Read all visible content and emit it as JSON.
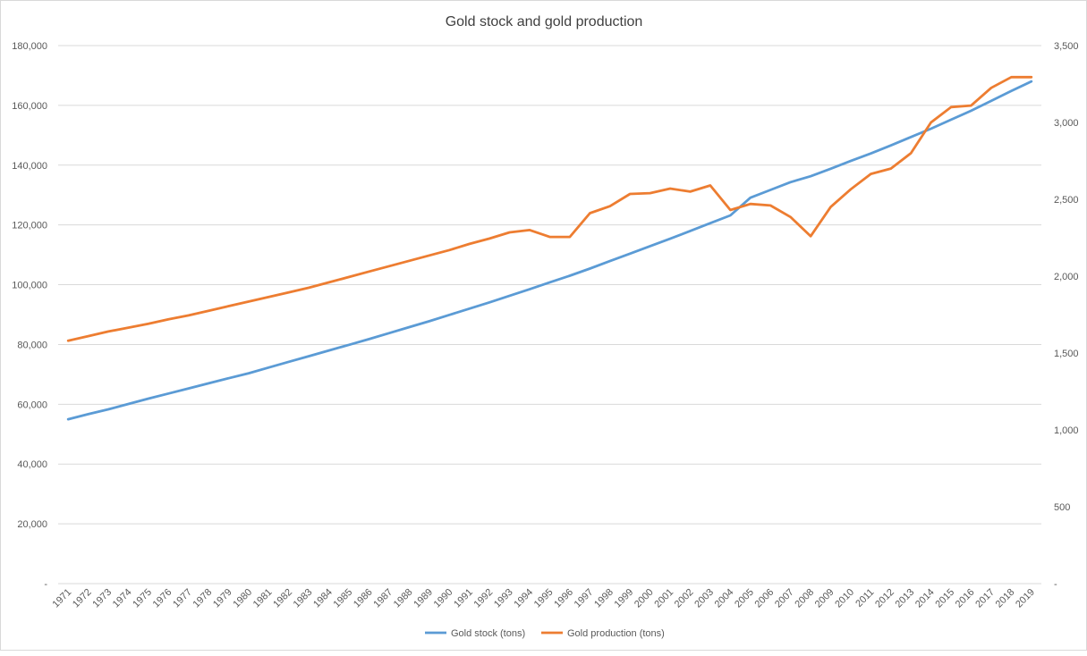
{
  "chart_data": {
    "type": "line",
    "title": "Gold stock and gold production",
    "categories": [
      "1971",
      "1972",
      "1973",
      "1974",
      "1975",
      "1976",
      "1977",
      "1978",
      "1979",
      "1980",
      "1981",
      "1982",
      "1983",
      "1984",
      "1985",
      "1986",
      "1987",
      "1988",
      "1989",
      "1990",
      "1991",
      "1992",
      "1993",
      "1994",
      "1995",
      "1996",
      "1997",
      "1998",
      "1999",
      "2000",
      "2001",
      "2002",
      "2003",
      "2004",
      "2005",
      "2006",
      "2007",
      "2008",
      "2009",
      "2010",
      "2011",
      "2012",
      "2013",
      "2014",
      "2015",
      "2016",
      "2017",
      "2018",
      "2019"
    ],
    "series": [
      {
        "name": "Gold stock (tons)",
        "axis": "left",
        "color": "#5b9bd5",
        "values": [
          55000,
          56700,
          58300,
          60100,
          61900,
          63600,
          65300,
          67000,
          68700,
          70400,
          72300,
          74200,
          76100,
          78000,
          79900,
          81800,
          83800,
          85800,
          87800,
          89900,
          92000,
          94100,
          96300,
          98500,
          100800,
          103000,
          105400,
          107900,
          110400,
          112900,
          115400,
          118000,
          120600,
          123200,
          129100,
          131700,
          134300,
          136300,
          138800,
          141400,
          143900,
          146600,
          149400,
          152200,
          155200,
          158200,
          161500,
          164800,
          168000
        ]
      },
      {
        "name": "Gold production (tons)",
        "axis": "right",
        "color": "#ed7d31",
        "values": [
          1580,
          1610,
          1640,
          1665,
          1690,
          1720,
          1745,
          1775,
          1805,
          1835,
          1865,
          1895,
          1925,
          1960,
          1995,
          2030,
          2065,
          2100,
          2135,
          2170,
          2210,
          2245,
          2285,
          2300,
          2255,
          2255,
          2410,
          2455,
          2535,
          2540,
          2570,
          2550,
          2590,
          2430,
          2470,
          2460,
          2385,
          2260,
          2450,
          2565,
          2665,
          2700,
          2800,
          3000,
          3100,
          3110,
          3225,
          3295,
          3295
        ]
      }
    ],
    "y_left": {
      "min": 0,
      "max": 180000,
      "step": 20000,
      "ticks": [
        "-",
        "20,000",
        "40,000",
        "60,000",
        "80,000",
        "100,000",
        "120,000",
        "140,000",
        "160,000",
        "180,000"
      ]
    },
    "y_right": {
      "min": 0,
      "max": 3500,
      "step": 500,
      "ticks": [
        "-",
        "500",
        "1,000",
        "1,500",
        "2,000",
        "2,500",
        "3,000",
        "3,500"
      ]
    },
    "legend_position": "bottom",
    "gridlines": true
  }
}
